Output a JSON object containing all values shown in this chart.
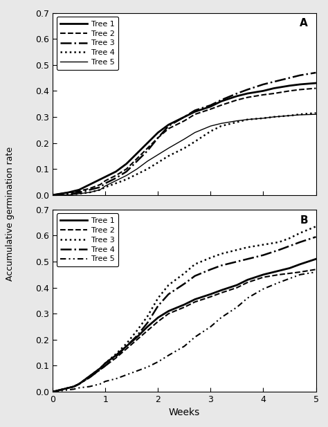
{
  "panel_A": {
    "label": "A",
    "trees": [
      {
        "name": "Tree 1",
        "ls_key": "solid_thick",
        "x": [
          0,
          0.3,
          0.5,
          0.7,
          0.9,
          1.0,
          1.2,
          1.4,
          1.6,
          1.8,
          2.0,
          2.2,
          2.5,
          2.7,
          3.0,
          3.2,
          3.5,
          3.7,
          4.0,
          4.2,
          4.5,
          4.7,
          5.0
        ],
        "y": [
          0,
          0.01,
          0.02,
          0.04,
          0.06,
          0.07,
          0.09,
          0.12,
          0.16,
          0.2,
          0.24,
          0.27,
          0.3,
          0.32,
          0.34,
          0.36,
          0.38,
          0.39,
          0.4,
          0.41,
          0.42,
          0.425,
          0.43
        ]
      },
      {
        "name": "Tree 2",
        "ls_key": "long_dash",
        "x": [
          0,
          0.3,
          0.5,
          0.7,
          0.9,
          1.0,
          1.2,
          1.4,
          1.6,
          1.8,
          2.0,
          2.2,
          2.5,
          2.7,
          3.0,
          3.2,
          3.5,
          3.7,
          4.0,
          4.2,
          4.5,
          4.7,
          5.0
        ],
        "y": [
          0,
          0.01,
          0.015,
          0.025,
          0.04,
          0.055,
          0.075,
          0.1,
          0.14,
          0.18,
          0.22,
          0.255,
          0.285,
          0.31,
          0.33,
          0.345,
          0.365,
          0.375,
          0.385,
          0.39,
          0.4,
          0.405,
          0.41
        ]
      },
      {
        "name": "Tree 3",
        "ls_key": "dashdot",
        "x": [
          0,
          0.3,
          0.5,
          0.7,
          0.9,
          1.0,
          1.2,
          1.4,
          1.6,
          1.8,
          2.0,
          2.2,
          2.5,
          2.7,
          3.0,
          3.2,
          3.5,
          3.7,
          4.0,
          4.2,
          4.5,
          4.7,
          5.0
        ],
        "y": [
          0,
          0.005,
          0.01,
          0.02,
          0.03,
          0.045,
          0.065,
          0.09,
          0.13,
          0.17,
          0.22,
          0.265,
          0.3,
          0.325,
          0.345,
          0.365,
          0.39,
          0.405,
          0.425,
          0.435,
          0.45,
          0.46,
          0.47
        ]
      },
      {
        "name": "Tree 4",
        "ls_key": "dotted",
        "x": [
          0,
          0.3,
          0.5,
          0.7,
          0.9,
          1.0,
          1.2,
          1.4,
          1.6,
          1.8,
          2.0,
          2.2,
          2.5,
          2.7,
          3.0,
          3.2,
          3.5,
          3.7,
          4.0,
          4.2,
          4.5,
          4.7,
          5.0
        ],
        "y": [
          0,
          0.0,
          0.005,
          0.01,
          0.02,
          0.03,
          0.045,
          0.06,
          0.08,
          0.1,
          0.125,
          0.15,
          0.18,
          0.205,
          0.245,
          0.265,
          0.28,
          0.29,
          0.295,
          0.3,
          0.305,
          0.31,
          0.315
        ]
      },
      {
        "name": "Tree 5",
        "ls_key": "solid_thin",
        "x": [
          0,
          0.3,
          0.5,
          0.7,
          0.9,
          1.0,
          1.2,
          1.4,
          1.6,
          1.8,
          2.0,
          2.2,
          2.5,
          2.7,
          3.0,
          3.2,
          3.5,
          3.7,
          4.0,
          4.2,
          4.5,
          4.7,
          5.0
        ],
        "y": [
          0,
          0.0,
          0.005,
          0.01,
          0.02,
          0.035,
          0.055,
          0.075,
          0.1,
          0.13,
          0.155,
          0.18,
          0.215,
          0.24,
          0.265,
          0.275,
          0.285,
          0.29,
          0.295,
          0.3,
          0.305,
          0.308,
          0.31
        ]
      }
    ],
    "ylim": [
      0,
      0.7
    ],
    "xlim": [
      0,
      5
    ],
    "yticks": [
      0,
      0.1,
      0.2,
      0.3,
      0.4,
      0.5,
      0.6,
      0.7
    ],
    "xticks": [
      0,
      1,
      2,
      3,
      4,
      5
    ]
  },
  "panel_B": {
    "label": "B",
    "trees": [
      {
        "name": "Tree 1",
        "ls_key": "solid_thick",
        "x": [
          0,
          0.2,
          0.4,
          0.5,
          0.7,
          0.9,
          1.0,
          1.2,
          1.4,
          1.6,
          1.8,
          2.0,
          2.2,
          2.5,
          2.7,
          3.0,
          3.2,
          3.5,
          3.7,
          4.0,
          4.3,
          4.5,
          4.7,
          5.0
        ],
        "y": [
          0,
          0.01,
          0.02,
          0.03,
          0.06,
          0.09,
          0.11,
          0.14,
          0.175,
          0.21,
          0.25,
          0.285,
          0.31,
          0.335,
          0.355,
          0.375,
          0.39,
          0.41,
          0.43,
          0.45,
          0.465,
          0.475,
          0.49,
          0.51
        ]
      },
      {
        "name": "Tree 2",
        "ls_key": "long_dash",
        "x": [
          0,
          0.2,
          0.4,
          0.5,
          0.7,
          0.9,
          1.0,
          1.2,
          1.4,
          1.6,
          1.8,
          2.0,
          2.2,
          2.5,
          2.7,
          3.0,
          3.2,
          3.5,
          3.7,
          4.0,
          4.3,
          4.5,
          4.7,
          5.0
        ],
        "y": [
          0,
          0.01,
          0.02,
          0.03,
          0.055,
          0.085,
          0.1,
          0.13,
          0.165,
          0.2,
          0.235,
          0.27,
          0.3,
          0.325,
          0.345,
          0.365,
          0.38,
          0.4,
          0.42,
          0.44,
          0.45,
          0.455,
          0.46,
          0.47
        ]
      },
      {
        "name": "Tree 3",
        "ls_key": "dotted",
        "x": [
          0,
          0.2,
          0.4,
          0.5,
          0.7,
          0.9,
          1.0,
          1.2,
          1.4,
          1.6,
          1.8,
          2.0,
          2.2,
          2.5,
          2.7,
          3.0,
          3.2,
          3.5,
          3.7,
          4.0,
          4.3,
          4.5,
          4.7,
          5.0
        ],
        "y": [
          0,
          0.01,
          0.02,
          0.03,
          0.06,
          0.09,
          0.11,
          0.145,
          0.185,
          0.235,
          0.29,
          0.36,
          0.41,
          0.455,
          0.49,
          0.515,
          0.53,
          0.545,
          0.555,
          0.565,
          0.575,
          0.59,
          0.61,
          0.635
        ]
      },
      {
        "name": "Tree 4",
        "ls_key": "dashdot",
        "x": [
          0,
          0.2,
          0.4,
          0.5,
          0.7,
          0.9,
          1.0,
          1.2,
          1.4,
          1.6,
          1.8,
          2.0,
          2.2,
          2.5,
          2.7,
          3.0,
          3.2,
          3.5,
          3.7,
          4.0,
          4.3,
          4.5,
          4.7,
          5.0
        ],
        "y": [
          0,
          0.01,
          0.02,
          0.03,
          0.055,
          0.085,
          0.1,
          0.135,
          0.175,
          0.215,
          0.265,
          0.33,
          0.375,
          0.415,
          0.445,
          0.47,
          0.485,
          0.5,
          0.51,
          0.525,
          0.545,
          0.56,
          0.575,
          0.595
        ]
      },
      {
        "name": "Tree 5",
        "ls_key": "dashdotdot",
        "x": [
          0,
          0.2,
          0.4,
          0.5,
          0.7,
          0.9,
          1.0,
          1.2,
          1.4,
          1.6,
          1.8,
          2.0,
          2.2,
          2.5,
          2.7,
          3.0,
          3.2,
          3.5,
          3.7,
          4.0,
          4.3,
          4.5,
          4.7,
          5.0
        ],
        "y": [
          0,
          0.005,
          0.01,
          0.015,
          0.02,
          0.03,
          0.04,
          0.05,
          0.065,
          0.08,
          0.095,
          0.115,
          0.14,
          0.175,
          0.21,
          0.25,
          0.285,
          0.325,
          0.36,
          0.395,
          0.42,
          0.435,
          0.45,
          0.46
        ]
      }
    ],
    "ylim": [
      0,
      0.7
    ],
    "xlim": [
      0,
      5
    ],
    "yticks": [
      0,
      0.1,
      0.2,
      0.3,
      0.4,
      0.5,
      0.6,
      0.7
    ],
    "xticks": [
      0,
      1,
      2,
      3,
      4,
      5
    ]
  },
  "ylabel": "Accumulative germination rate",
  "xlabel": "Weeks",
  "fig_facecolor": "#e8e8e8"
}
